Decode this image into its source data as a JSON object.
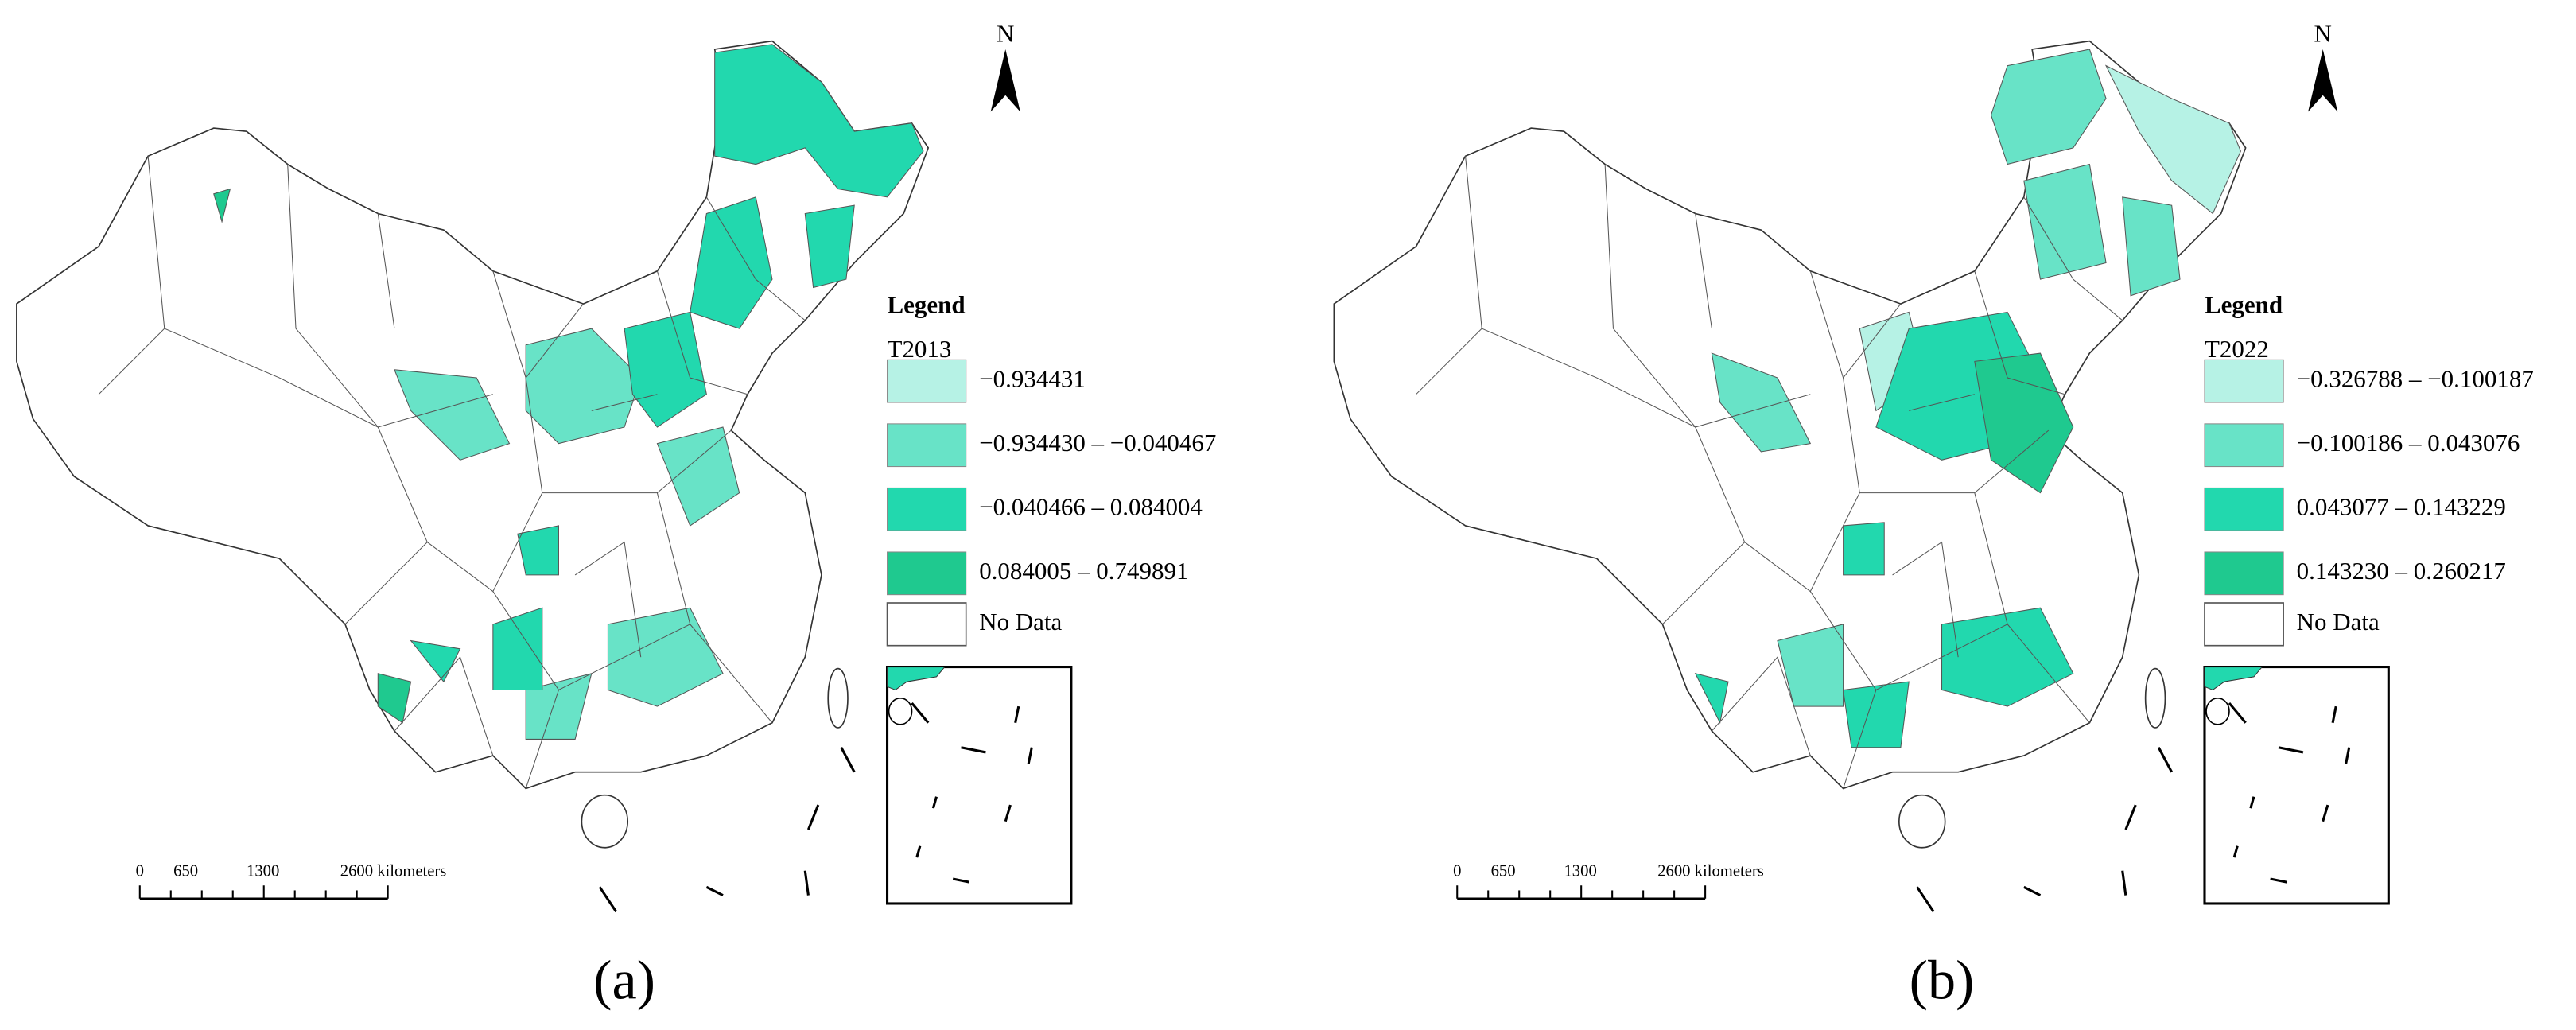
{
  "panels": [
    {
      "label": "(a)",
      "north": "N",
      "legend": {
        "title": "Legend",
        "field": "T2013",
        "classes": [
          {
            "label": "−0.934431",
            "color": "#b6f2e5"
          },
          {
            "label": "−0.934430 – −0.040467",
            "color": "#68e3c7"
          },
          {
            "label": "−0.040466 – 0.084004",
            "color": "#22d8ae"
          },
          {
            "label": "0.084005 – 0.749891",
            "color": "#1fc98f"
          }
        ],
        "no_data": "No Data"
      },
      "scale_bar": [
        "0",
        "650",
        "1300",
        "2600 kilometers"
      ]
    },
    {
      "label": "(b)",
      "north": "N",
      "legend": {
        "title": "Legend",
        "field": "T2022",
        "classes": [
          {
            "label": "−0.326788 – −0.100187",
            "color": "#b6f2e5"
          },
          {
            "label": "−0.100186 – 0.043076",
            "color": "#68e3c7"
          },
          {
            "label": "0.043077 – 0.143229",
            "color": "#22d8ae"
          },
          {
            "label": "0.143230 – 0.260217",
            "color": "#1fc98f"
          }
        ],
        "no_data": "No Data"
      },
      "scale_bar": [
        "0",
        "650",
        "1300",
        "2600 kilometers"
      ]
    }
  ]
}
